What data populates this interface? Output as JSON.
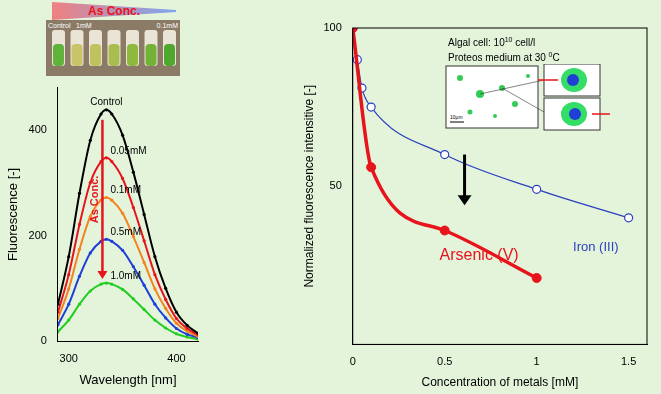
{
  "photo": {
    "title": "As Conc.",
    "labels": [
      "Control",
      "1mM",
      "0.1mM"
    ]
  },
  "chart_data": [
    {
      "type": "line",
      "x_label": "Wavelength [nm]",
      "y_label": "Fluorescence [-]",
      "x": [
        290,
        300,
        310,
        320,
        330,
        335,
        340,
        350,
        360,
        370,
        380,
        390,
        400,
        410,
        420
      ],
      "xlim": [
        290,
        420
      ],
      "xticks": [
        300,
        400
      ],
      "ylim": [
        0,
        480
      ],
      "yticks": [
        0,
        200,
        400
      ],
      "grid": false,
      "marker": "circle",
      "line_style": "solid",
      "annotations": [
        "As Conc."
      ],
      "series": [
        {
          "name": "Control",
          "color": "#000000",
          "values": [
            70,
            160,
            280,
            380,
            430,
            438,
            430,
            390,
            320,
            240,
            160,
            100,
            55,
            30,
            15
          ]
        },
        {
          "name": "0.05mM",
          "color": "#e8141c",
          "values": [
            55,
            126,
            221,
            300,
            340,
            347,
            340,
            308,
            253,
            190,
            126,
            79,
            43,
            24,
            12
          ]
        },
        {
          "name": "0.1mM",
          "color": "#f58220",
          "values": [
            43,
            99,
            174,
            236,
            267,
            272,
            267,
            242,
            198,
            149,
            99,
            62,
            34,
            19,
            9
          ]
        },
        {
          "name": "0.5mM",
          "color": "#1f3fd6",
          "values": [
            31,
            70,
            123,
            167,
            189,
            193,
            189,
            172,
            141,
            106,
            70,
            44,
            24,
            13,
            7
          ]
        },
        {
          "name": "1.0mM",
          "color": "#22cc22",
          "values": [
            18,
            40,
            70,
            95,
            108,
            110,
            108,
            98,
            80,
            60,
            40,
            25,
            14,
            8,
            4
          ]
        }
      ]
    },
    {
      "type": "scatter",
      "x_label": "Concentration of metals [mM]",
      "y_label": "Normalized fluorescence intensitive [-]",
      "xlim": [
        0,
        1.6
      ],
      "xticks": [
        0,
        0.5,
        1,
        1.5
      ],
      "ylim": [
        0,
        100
      ],
      "yticks": [
        50,
        100
      ],
      "grid": false,
      "inset": {
        "lines": [
          [
            "Algal cell: 10",
            "10",
            " cell/l"
          ],
          [
            "Proteos medium at 30 ",
            "0",
            "C"
          ]
        ],
        "scale_bar": "10μm"
      },
      "series": [
        {
          "name": "Arsenic (V)",
          "color": "#e8141c",
          "x": [
            0,
            0.1,
            0.5,
            1
          ],
          "values": [
            100,
            56,
            36,
            21
          ],
          "marker": "filled_circle",
          "line_style": "solid"
        },
        {
          "name": "Iron (III)",
          "color": "#2b3fbf",
          "x": [
            0,
            0.025,
            0.05,
            0.1,
            0.5,
            1,
            1.5
          ],
          "values": [
            100,
            90,
            81,
            75,
            60,
            49,
            40
          ],
          "marker": "open_circle",
          "line_style": "solid"
        }
      ]
    }
  ]
}
